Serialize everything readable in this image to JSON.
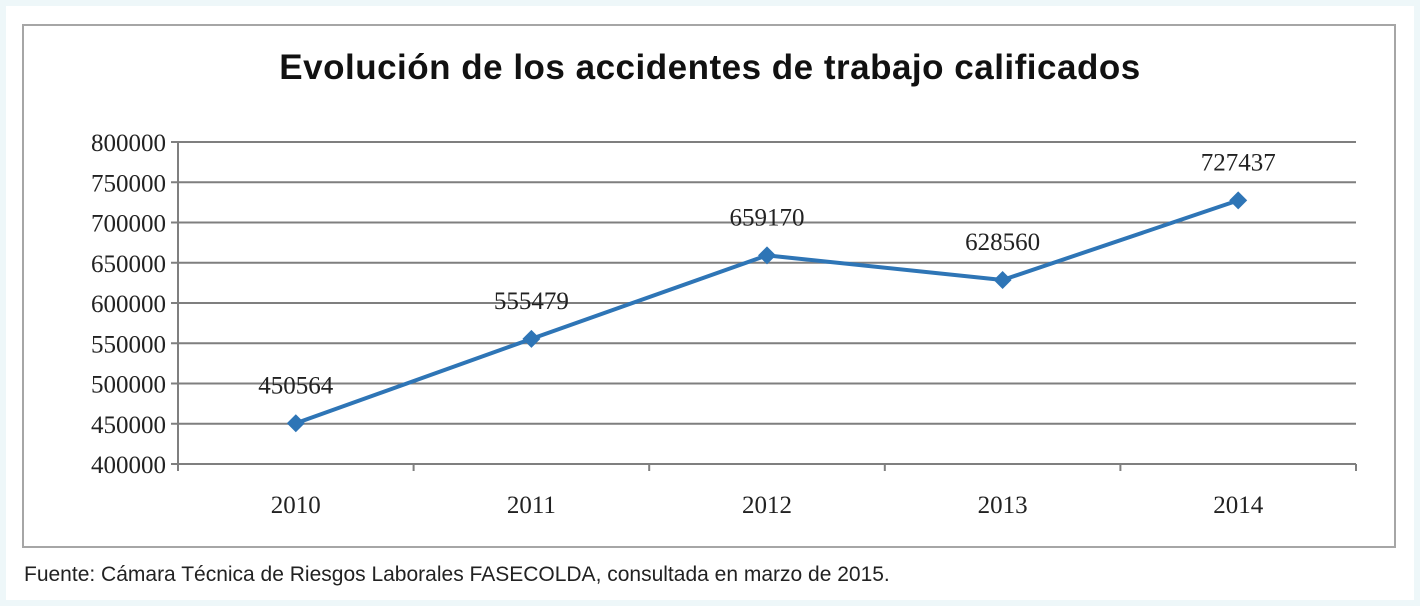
{
  "chart_data": {
    "type": "line",
    "title": "Evolución de los accidentes de trabajo calificados",
    "xlabel": "",
    "ylabel": "",
    "categories": [
      "2010",
      "2011",
      "2012",
      "2013",
      "2014"
    ],
    "series": [
      {
        "values": [
          450564,
          555479,
          659170,
          628560,
          727437
        ],
        "color": "#2e75b6",
        "marker": "diamond"
      }
    ],
    "data_labels": [
      "450564",
      "555479",
      "659170",
      "628560",
      "727437"
    ],
    "yticks": [
      "400000",
      "450000",
      "500000",
      "550000",
      "600000",
      "650000",
      "700000",
      "750000",
      "800000"
    ],
    "ylim": [
      400000,
      800000
    ],
    "grid": true,
    "legend": "none"
  },
  "source": "Fuente: Cámara Técnica de Riesgos Laborales FASECOLDA, consultada en marzo de 2015."
}
